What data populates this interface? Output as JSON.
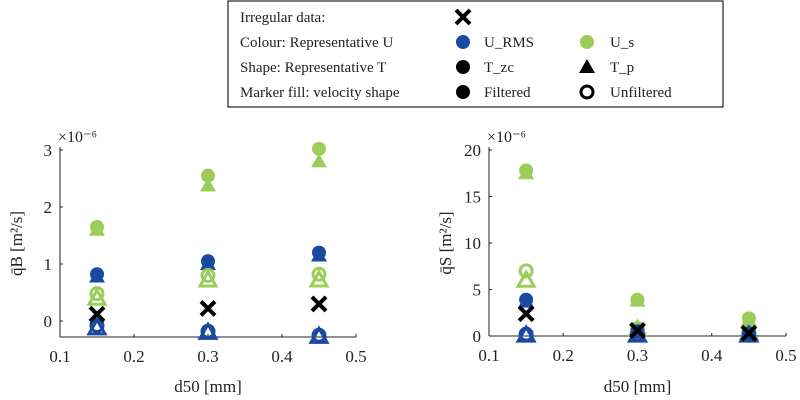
{
  "colors": {
    "U_RMS": "#1a4aa0",
    "U_s": "#9ccc5a",
    "irregular": "#000000"
  },
  "legend": {
    "rows": [
      {
        "label": "Irregular data:",
        "items": [
          {
            "marker": "x",
            "label": ""
          }
        ]
      },
      {
        "label": "Colour: Representative U",
        "items": [
          {
            "marker": "circle-blue",
            "label": "U_RMS"
          },
          {
            "marker": "circle-green",
            "label": "U_s"
          }
        ]
      },
      {
        "label": "Shape: Representative T",
        "items": [
          {
            "marker": "circle-black",
            "label": "T_zc"
          },
          {
            "marker": "triangle-black",
            "label": "T_p"
          }
        ]
      },
      {
        "label": "Marker fill: velocity shape",
        "items": [
          {
            "marker": "circle-black",
            "label": "Filtered"
          },
          {
            "marker": "circle-open",
            "label": "Unfiltered"
          }
        ]
      }
    ]
  },
  "chart_data": [
    {
      "type": "scatter",
      "xlabel": "d50 [mm]",
      "ylabel": "q̄B [m²/s]",
      "exponent": "×10⁻⁶",
      "xlim": [
        0.1,
        0.5
      ],
      "ylim": [
        -0.28,
        3
      ],
      "xticks": [
        "0.1",
        "0.2",
        "0.3",
        "0.4",
        "0.5"
      ],
      "yticks": [
        "0",
        "1",
        "2",
        "3"
      ],
      "x": [
        0.15,
        0.3,
        0.45
      ],
      "series": [
        {
          "color": "U_s",
          "shape": "circle",
          "filled": true,
          "values": [
            1.65,
            2.55,
            3.02
          ]
        },
        {
          "color": "U_s",
          "shape": "triangle",
          "filled": true,
          "values": [
            1.6,
            2.38,
            2.8
          ]
        },
        {
          "color": "U_RMS",
          "shape": "circle",
          "filled": true,
          "values": [
            0.82,
            1.05,
            1.2
          ]
        },
        {
          "color": "U_RMS",
          "shape": "triangle",
          "filled": true,
          "values": [
            0.78,
            1.0,
            1.15
          ]
        },
        {
          "color": "U_s",
          "shape": "circle",
          "filled": false,
          "values": [
            0.48,
            0.8,
            0.82
          ]
        },
        {
          "color": "U_s",
          "shape": "triangle",
          "filled": false,
          "values": [
            0.4,
            0.72,
            0.72
          ]
        },
        {
          "color": "U_RMS",
          "shape": "circle",
          "filled": false,
          "values": [
            -0.08,
            -0.18,
            -0.25
          ]
        },
        {
          "color": "U_RMS",
          "shape": "triangle",
          "filled": false,
          "values": [
            -0.12,
            -0.2,
            -0.27
          ]
        },
        {
          "color": "irregular",
          "shape": "x",
          "filled": true,
          "values": [
            0.12,
            0.22,
            0.3
          ]
        }
      ]
    },
    {
      "type": "scatter",
      "xlabel": "d50 [mm]",
      "ylabel": "q̄S [m²/s]",
      "exponent": "×10⁻⁶",
      "xlim": [
        0.1,
        0.5
      ],
      "ylim": [
        0,
        20
      ],
      "xticks": [
        "0.1",
        "0.2",
        "0.3",
        "0.4",
        "0.5"
      ],
      "yticks": [
        "0",
        "5",
        "10",
        "15",
        "20"
      ],
      "x": [
        0.15,
        0.3,
        0.45
      ],
      "series": [
        {
          "color": "U_s",
          "shape": "circle",
          "filled": true,
          "values": [
            17.8,
            3.9,
            1.9
          ]
        },
        {
          "color": "U_s",
          "shape": "triangle",
          "filled": true,
          "values": [
            17.5,
            3.8,
            1.7
          ]
        },
        {
          "color": "U_s",
          "shape": "circle",
          "filled": false,
          "values": [
            7.0,
            0.8,
            0.4
          ]
        },
        {
          "color": "U_s",
          "shape": "triangle",
          "filled": false,
          "values": [
            6.0,
            0.7,
            0.3
          ]
        },
        {
          "color": "U_RMS",
          "shape": "circle",
          "filled": true,
          "values": [
            3.9,
            0.5,
            0.3
          ]
        },
        {
          "color": "U_RMS",
          "shape": "triangle",
          "filled": true,
          "values": [
            3.7,
            0.4,
            0.2
          ]
        },
        {
          "color": "U_RMS",
          "shape": "circle",
          "filled": false,
          "values": [
            0.2,
            0.2,
            0.1
          ]
        },
        {
          "color": "U_RMS",
          "shape": "triangle",
          "filled": false,
          "values": [
            0.1,
            0.1,
            0.1
          ]
        },
        {
          "color": "irregular",
          "shape": "x",
          "filled": true,
          "values": [
            2.4,
            0.6,
            0.3
          ]
        }
      ]
    }
  ]
}
